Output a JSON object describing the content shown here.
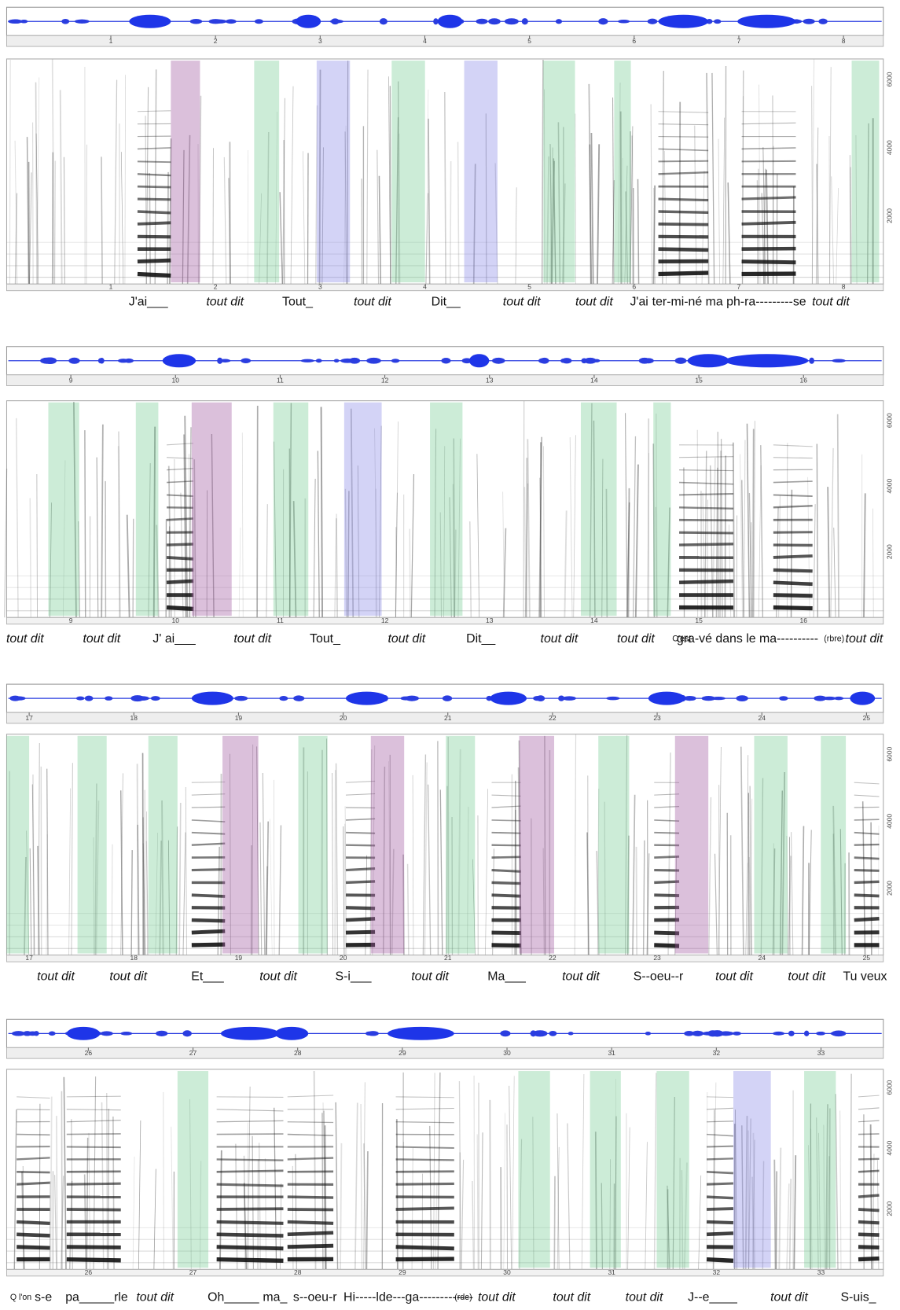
{
  "panels": [
    {
      "time_ticks": [
        1,
        2,
        3,
        4,
        5,
        6,
        7,
        8
      ],
      "freq_ticks": [
        2000,
        4000,
        6000
      ],
      "lyrics": [
        "J'ai___",
        "tout dit",
        "Tout_",
        "tout  dit",
        "Dit__",
        "tout dit",
        "tout dit",
        "J'ai",
        "ter-mi-né ma ph-ra---------se",
        "tout dit"
      ]
    },
    {
      "time_ticks": [
        9,
        10,
        11,
        12,
        13,
        14,
        15,
        16
      ],
      "freq_ticks": [
        2000,
        4000,
        6000
      ],
      "lyrics": [
        "tout dit",
        "tout dit",
        "J' ai___",
        "tout dit",
        "Tout_",
        "tout  dit",
        "Dit__",
        "tout dit",
        "tout dit",
        "C'est",
        "gra-vé dans le ma----------",
        "(rbre)",
        "tout dit"
      ]
    },
    {
      "time_ticks": [
        17,
        18,
        19,
        20,
        21,
        22,
        23,
        24,
        25
      ],
      "freq_ticks": [
        2000,
        4000,
        6000
      ],
      "lyrics": [
        "tout dit",
        "tout dit",
        "Et___",
        "tout dit",
        "S-i___",
        "tout  dit",
        "Ma___",
        "tout dit",
        "S--oeu--r",
        "tout dit",
        "tout dit",
        "Tu veux"
      ]
    },
    {
      "time_ticks": [
        26,
        27,
        28,
        29,
        30,
        31,
        32,
        33
      ],
      "freq_ticks": [
        2000,
        4000,
        6000
      ],
      "lyrics": [
        "Q l'on",
        "s-e",
        "pa_____rle",
        "tout dit",
        "Oh_____",
        "ma_",
        "s--oeu-r",
        "Hi-----lde---ga-------------",
        "(rde)",
        "tout dit",
        "tout dit",
        "tout dit",
        "J--e____",
        "tout dit",
        "S-uis_"
      ]
    }
  ]
}
